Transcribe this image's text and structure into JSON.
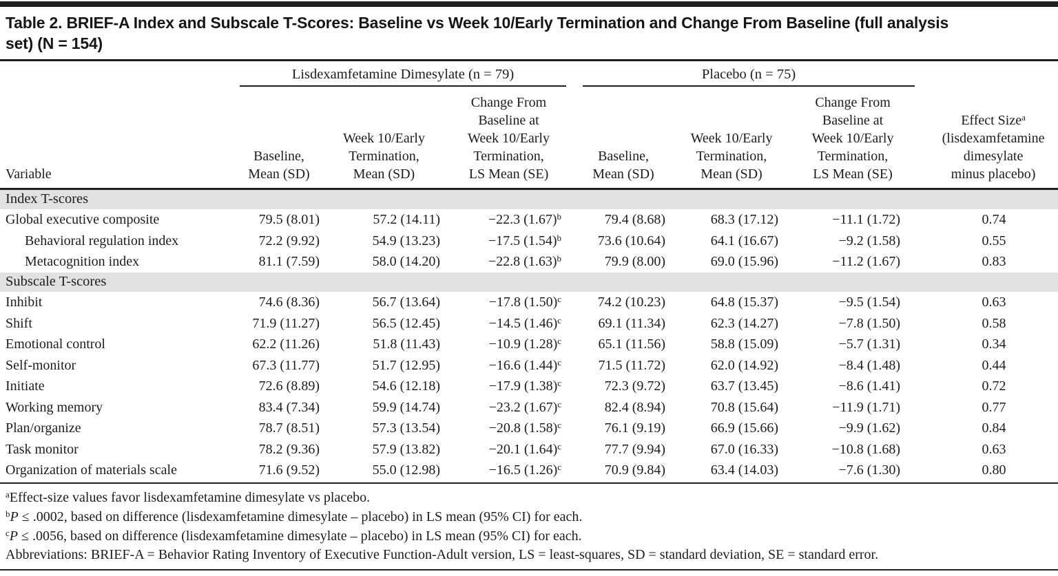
{
  "colors": {
    "rule": "#1f1f1f",
    "section_band": "#e1e1e1",
    "text": "#1c1c1c"
  },
  "table": {
    "title_lines": [
      "Table 2. BRIEF-A Index and Subscale T-Scores: Baseline vs Week 10/Early Termination and Change From Baseline (full analysis",
      "set) (N = 154)"
    ],
    "groups": [
      {
        "label": "Lisdexamfetamine Dimesylate (n = 79)"
      },
      {
        "label": "Placebo (n = 75)"
      }
    ],
    "columns": {
      "variable": "Variable",
      "baseline": "Baseline,\nMean (SD)",
      "week10": "Week 10/Early\nTermination,\nMean (SD)",
      "change": "Change From\nBaseline at\nWeek 10/Early\nTermination,\nLS Mean (SE)",
      "effect_main": "Effect Size",
      "effect_sup": "a",
      "effect_sub": "(lisdexamfetamine\ndimesylate\nminus placebo)"
    },
    "sections": [
      {
        "label": "Index T-scores",
        "rows": [
          {
            "variable": "Global executive composite",
            "indent": false,
            "ldx_baseline": "79.5 (8.01)",
            "ldx_week10": "57.2 (14.11)",
            "ldx_change": "−22.3 (1.67)",
            "ldx_change_sup": "b",
            "pbo_baseline": "79.4 (8.68)",
            "pbo_week10": "68.3 (17.12)",
            "pbo_change": "−11.1 (1.72)",
            "effect_size": "0.74"
          },
          {
            "variable": "Behavioral regulation index",
            "indent": true,
            "ldx_baseline": "72.2 (9.92)",
            "ldx_week10": "54.9 (13.23)",
            "ldx_change": "−17.5 (1.54)",
            "ldx_change_sup": "b",
            "pbo_baseline": "73.6 (10.64)",
            "pbo_week10": "64.1 (16.67)",
            "pbo_change": "−9.2 (1.58)",
            "effect_size": "0.55"
          },
          {
            "variable": "Metacognition index",
            "indent": true,
            "ldx_baseline": "81.1 (7.59)",
            "ldx_week10": "58.0 (14.20)",
            "ldx_change": "−22.8 (1.63)",
            "ldx_change_sup": "b",
            "pbo_baseline": "79.9 (8.00)",
            "pbo_week10": "69.0 (15.96)",
            "pbo_change": "−11.2 (1.67)",
            "effect_size": "0.83"
          }
        ]
      },
      {
        "label": "Subscale T-scores",
        "rows": [
          {
            "variable": "Inhibit",
            "indent": false,
            "ldx_baseline": "74.6 (8.36)",
            "ldx_week10": "56.7 (13.64)",
            "ldx_change": "−17.8 (1.50)",
            "ldx_change_sup": "c",
            "pbo_baseline": "74.2 (10.23)",
            "pbo_week10": "64.8 (15.37)",
            "pbo_change": "−9.5 (1.54)",
            "effect_size": "0.63"
          },
          {
            "variable": "Shift",
            "indent": false,
            "ldx_baseline": "71.9 (11.27)",
            "ldx_week10": "56.5 (12.45)",
            "ldx_change": "−14.5 (1.46)",
            "ldx_change_sup": "c",
            "pbo_baseline": "69.1 (11.34)",
            "pbo_week10": "62.3 (14.27)",
            "pbo_change": "−7.8 (1.50)",
            "effect_size": "0.58"
          },
          {
            "variable": "Emotional control",
            "indent": false,
            "ldx_baseline": "62.2 (11.26)",
            "ldx_week10": "51.8 (11.43)",
            "ldx_change": "−10.9 (1.28)",
            "ldx_change_sup": "c",
            "pbo_baseline": "65.1 (11.56)",
            "pbo_week10": "58.8 (15.09)",
            "pbo_change": "−5.7 (1.31)",
            "effect_size": "0.34"
          },
          {
            "variable": "Self-monitor",
            "indent": false,
            "ldx_baseline": "67.3 (11.77)",
            "ldx_week10": "51.7 (12.95)",
            "ldx_change": "−16.6 (1.44)",
            "ldx_change_sup": "c",
            "pbo_baseline": "71.5 (11.72)",
            "pbo_week10": "62.0 (14.92)",
            "pbo_change": "−8.4 (1.48)",
            "effect_size": "0.44"
          },
          {
            "variable": "Initiate",
            "indent": false,
            "ldx_baseline": "72.6 (8.89)",
            "ldx_week10": "54.6 (12.18)",
            "ldx_change": "−17.9 (1.38)",
            "ldx_change_sup": "c",
            "pbo_baseline": "72.3 (9.72)",
            "pbo_week10": "63.7 (13.45)",
            "pbo_change": "−8.6 (1.41)",
            "effect_size": "0.72"
          },
          {
            "variable": "Working memory",
            "indent": false,
            "ldx_baseline": "83.4 (7.34)",
            "ldx_week10": "59.9 (14.74)",
            "ldx_change": "−23.2 (1.67)",
            "ldx_change_sup": "c",
            "pbo_baseline": "82.4 (8.94)",
            "pbo_week10": "70.8 (15.64)",
            "pbo_change": "−11.9 (1.71)",
            "effect_size": "0.77"
          },
          {
            "variable": "Plan/organize",
            "indent": false,
            "ldx_baseline": "78.7 (8.51)",
            "ldx_week10": "57.3 (13.54)",
            "ldx_change": "−20.8 (1.58)",
            "ldx_change_sup": "c",
            "pbo_baseline": "76.1 (9.19)",
            "pbo_week10": "66.9 (15.66)",
            "pbo_change": "−9.9 (1.62)",
            "effect_size": "0.84"
          },
          {
            "variable": "Task monitor",
            "indent": false,
            "ldx_baseline": "78.2 (9.36)",
            "ldx_week10": "57.9 (13.82)",
            "ldx_change": "−20.1 (1.64)",
            "ldx_change_sup": "c",
            "pbo_baseline": "77.7 (9.94)",
            "pbo_week10": "67.0 (16.33)",
            "pbo_change": "−10.8 (1.68)",
            "effect_size": "0.63"
          },
          {
            "variable": "Organization of materials scale",
            "indent": false,
            "ldx_baseline": "71.6 (9.52)",
            "ldx_week10": "55.0 (12.98)",
            "ldx_change": "−16.5 (1.26)",
            "ldx_change_sup": "c",
            "pbo_baseline": "70.9 (9.84)",
            "pbo_week10": "63.4 (14.03)",
            "pbo_change": "−7.6 (1.30)",
            "effect_size": "0.80"
          }
        ]
      }
    ],
    "footnotes": [
      {
        "sup": "a",
        "italic": "",
        "text": "Effect-size values favor lisdexamfetamine dimesylate vs placebo.",
        "hanging": false
      },
      {
        "sup": "b",
        "italic": "P",
        "text": " ≤ .0002, based on difference (lisdexamfetamine dimesylate – placebo) in LS mean (95% CI) for each.",
        "hanging": false
      },
      {
        "sup": "c",
        "italic": "P",
        "text": " ≤ .0056, based on difference (lisdexamfetamine dimesylate – placebo) in LS mean (95% CI) for each.",
        "hanging": false
      },
      {
        "sup": "",
        "italic": "",
        "text": "Abbreviations: BRIEF-A = Behavior Rating Inventory of Executive Function-Adult version, LS = least-squares, SD = standard deviation, SE = standard error.",
        "hanging": true
      }
    ]
  }
}
